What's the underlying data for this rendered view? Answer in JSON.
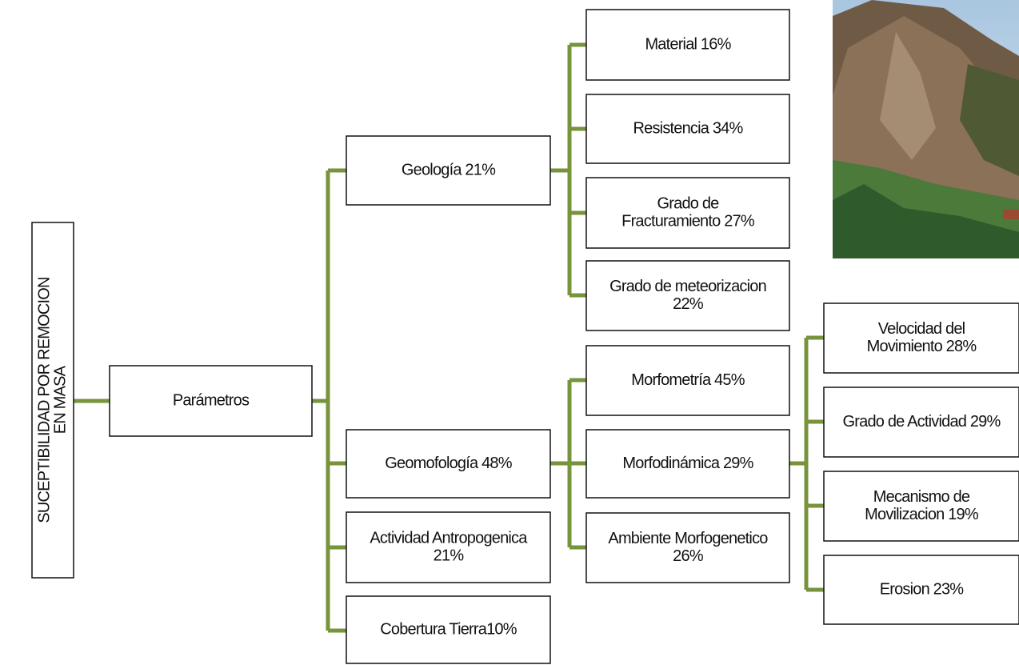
{
  "root": {
    "lines": [
      "SUCEPTIBILIDAD POR REMOCION",
      "EN MASA"
    ]
  },
  "nodes": [
    {
      "lines": [
        "Parámetros"
      ]
    },
    {
      "lines": [
        "Geología  21%"
      ]
    },
    {
      "lines": [
        "Geomofología  48%"
      ]
    },
    {
      "lines": [
        "Actividad Antropogenica",
        "21%"
      ]
    },
    {
      "lines": [
        "Cobertura Tierra10%"
      ]
    },
    {
      "lines": [
        "Material  16%"
      ]
    },
    {
      "lines": [
        "Resistencia  34%"
      ]
    },
    {
      "lines": [
        "Grado de",
        "Fracturamiento 27%"
      ]
    },
    {
      "lines": [
        "Grado de meteorizacion",
        "22%"
      ]
    },
    {
      "lines": [
        "Morfometría  45%"
      ]
    },
    {
      "lines": [
        "Morfodinámica 29%"
      ]
    },
    {
      "lines": [
        "Ambiente Morfogenetico",
        "26%"
      ]
    },
    {
      "lines": [
        "Velocidad del",
        "Movimiento 28%"
      ]
    },
    {
      "lines": [
        "Grado de Actividad 29%"
      ]
    },
    {
      "lines": [
        "Mecanismo de",
        "Movilizacion 19%"
      ]
    },
    {
      "lines": [
        "Erosion  23%"
      ]
    }
  ]
}
